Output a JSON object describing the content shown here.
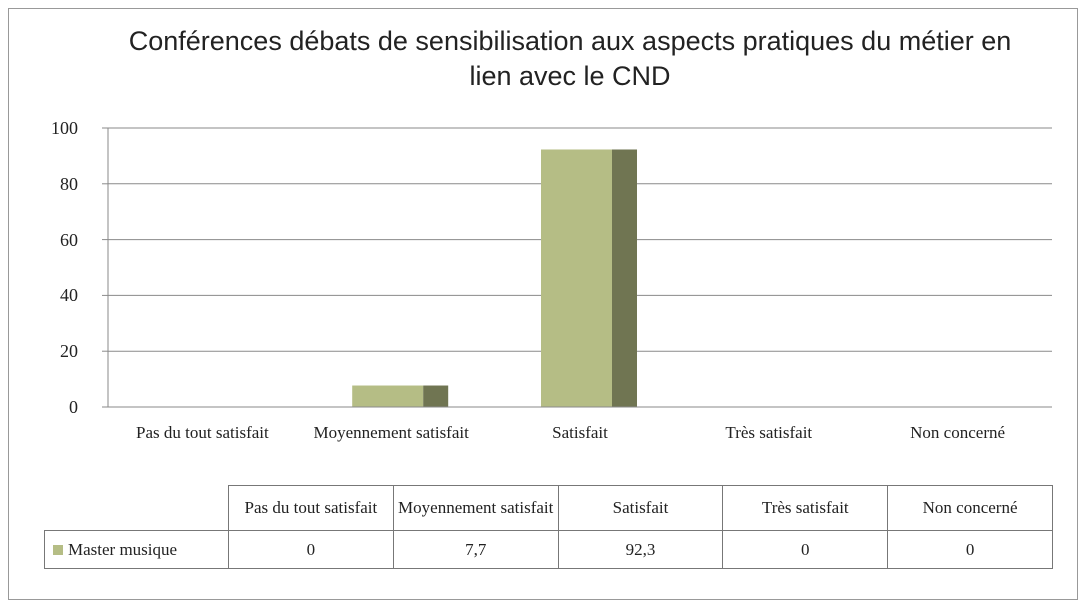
{
  "chart_data": {
    "type": "bar",
    "title": "Conférences débats de sensibilisation aux aspects pratiques du métier en lien avec le CND",
    "categories": [
      "Pas du tout satisfait",
      "Moyennement satisfait",
      "Satisfait",
      "Très satisfait",
      "Non concerné"
    ],
    "series": [
      {
        "name": "Master musique",
        "color": "#b5bd85",
        "values": [
          0,
          7.7,
          92.3,
          0,
          0
        ],
        "value_labels": [
          "0",
          "7,7",
          "92,3",
          "0",
          "0"
        ]
      }
    ],
    "ylim": [
      0,
      100
    ],
    "yticks": [
      0,
      20,
      40,
      60,
      80,
      100
    ],
    "grid": true
  }
}
